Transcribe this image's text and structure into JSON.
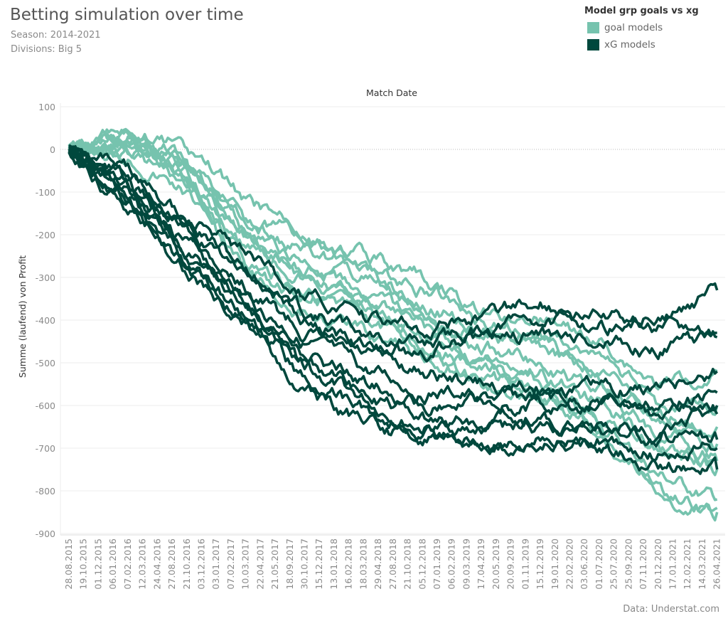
{
  "chart_data": {
    "type": "line",
    "title": "Betting simulation over time",
    "subtitles": [
      "Season: 2014-2021",
      "Divisions: Big 5"
    ],
    "xlabel": "Match Date",
    "ylabel": "Summe (laufend) von Profit",
    "source": "Data: Understat.com",
    "ylim": [
      -900,
      100
    ],
    "yticks": [
      100,
      0,
      -100,
      -200,
      -300,
      -400,
      -500,
      -600,
      -700,
      -800,
      -900
    ],
    "grid": true,
    "legend": {
      "title": "Model grp goals vs xg",
      "placement": "top-right",
      "entries": [
        {
          "name": "goal models",
          "color": "#76c3ae"
        },
        {
          "name": "xG models",
          "color": "#00483d"
        }
      ]
    },
    "xticks": [
      "28.08.2015",
      "19.10.2015",
      "01.12.2015",
      "06.01.2016",
      "07.02.2016",
      "12.03.2016",
      "24.04.2016",
      "27.08.2016",
      "21.10.2016",
      "03.12.2016",
      "03.01.2017",
      "07.02.2017",
      "10.03.2017",
      "22.04.2017",
      "21.05.2017",
      "18.09.2017",
      "30.10.2017",
      "15.12.2017",
      "13.01.2018",
      "16.02.2018",
      "18.03.2018",
      "29.04.2018",
      "27.08.2018",
      "21.10.2018",
      "05.12.2018",
      "07.01.2019",
      "06.02.2019",
      "09.03.2019",
      "17.04.2019",
      "20.05.2019",
      "20.09.2019",
      "01.11.2019",
      "15.12.2019",
      "19.01.2020",
      "22.02.2020",
      "03.06.2020",
      "01.07.2020",
      "25.07.2020",
      "25.09.2020",
      "07.11.2020",
      "20.12.2020",
      "17.01.2021",
      "12.02.2021",
      "14.03.2021",
      "26.04.2021"
    ],
    "x": [
      "28.08.2015",
      "07.02.2016",
      "21.10.2016",
      "10.03.2017",
      "30.10.2017",
      "18.03.2018",
      "05.12.2018",
      "17.04.2019",
      "15.12.2019",
      "01.07.2020",
      "20.12.2020",
      "26.04.2021"
    ],
    "series": [
      {
        "group": "goal models",
        "values": [
          0,
          40,
          5,
          -120,
          -200,
          -250,
          -300,
          -380,
          -400,
          -450,
          -560,
          -520
        ]
      },
      {
        "group": "goal models",
        "values": [
          10,
          30,
          -20,
          -150,
          -220,
          -270,
          -330,
          -400,
          -430,
          -480,
          -600,
          -600
        ]
      },
      {
        "group": "goal models",
        "values": [
          0,
          20,
          -40,
          -170,
          -240,
          -290,
          -360,
          -420,
          -450,
          -520,
          -620,
          -650
        ]
      },
      {
        "group": "goal models",
        "values": [
          5,
          10,
          -60,
          -190,
          -260,
          -310,
          -380,
          -440,
          -470,
          -540,
          -640,
          -690
        ]
      },
      {
        "group": "goal models",
        "values": [
          0,
          0,
          -80,
          -210,
          -280,
          -330,
          -400,
          -460,
          -500,
          -560,
          -660,
          -720
        ]
      },
      {
        "group": "goal models",
        "values": [
          10,
          -10,
          -100,
          -230,
          -300,
          -360,
          -430,
          -480,
          -520,
          -590,
          -690,
          -750
        ]
      },
      {
        "group": "goal models",
        "values": [
          0,
          25,
          -50,
          -260,
          -330,
          -380,
          -450,
          -510,
          -560,
          -620,
          -700,
          -730
        ]
      },
      {
        "group": "goal models",
        "values": [
          0,
          15,
          -70,
          -280,
          -350,
          -400,
          -470,
          -530,
          -580,
          -640,
          -760,
          -820
        ]
      },
      {
        "group": "goal models",
        "values": [
          5,
          35,
          -30,
          -200,
          -290,
          -350,
          -420,
          -500,
          -560,
          -650,
          -790,
          -840
        ]
      },
      {
        "group": "goal models",
        "values": [
          0,
          5,
          -90,
          -300,
          -380,
          -430,
          -480,
          -540,
          -590,
          -660,
          -800,
          -850
        ]
      },
      {
        "group": "xG models",
        "values": [
          0,
          -50,
          -150,
          -250,
          -350,
          -400,
          -420,
          -390,
          -360,
          -380,
          -390,
          -330
        ]
      },
      {
        "group": "xG models",
        "values": [
          0,
          -60,
          -170,
          -280,
          -380,
          -430,
          -460,
          -420,
          -400,
          -410,
          -420,
          -440
        ]
      },
      {
        "group": "xG models",
        "values": [
          0,
          -70,
          -190,
          -300,
          -400,
          -460,
          -480,
          -450,
          -430,
          -450,
          -470,
          -430
        ]
      },
      {
        "group": "xG models",
        "values": [
          -5,
          -80,
          -200,
          -320,
          -430,
          -490,
          -520,
          -550,
          -560,
          -560,
          -560,
          -520
        ]
      },
      {
        "group": "xG models",
        "values": [
          0,
          -90,
          -220,
          -340,
          -450,
          -520,
          -560,
          -580,
          -580,
          -590,
          -600,
          -570
        ]
      },
      {
        "group": "xG models",
        "values": [
          0,
          -100,
          -230,
          -360,
          -470,
          -550,
          -600,
          -600,
          -600,
          -610,
          -620,
          -600
        ]
      },
      {
        "group": "xG models",
        "values": [
          -5,
          -110,
          -250,
          -380,
          -500,
          -570,
          -630,
          -640,
          -630,
          -640,
          -660,
          -620
        ]
      },
      {
        "group": "xG models",
        "values": [
          0,
          -120,
          -260,
          -390,
          -520,
          -590,
          -650,
          -660,
          -650,
          -660,
          -690,
          -680
        ]
      },
      {
        "group": "xG models",
        "values": [
          0,
          -130,
          -270,
          -400,
          -540,
          -610,
          -670,
          -690,
          -680,
          -680,
          -710,
          -700
        ]
      },
      {
        "group": "xG models",
        "values": [
          0,
          -140,
          -280,
          -410,
          -570,
          -640,
          -680,
          -700,
          -690,
          -700,
          -740,
          -750
        ]
      }
    ]
  }
}
